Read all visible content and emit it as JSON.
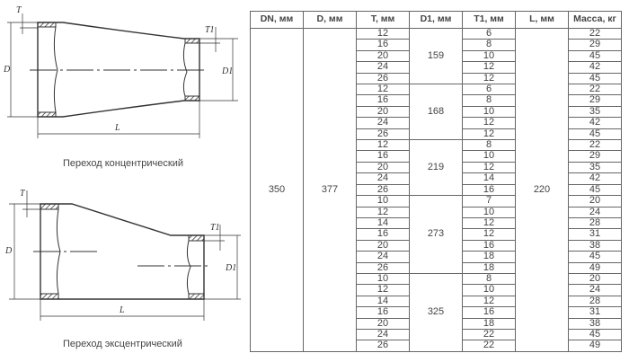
{
  "drawings": {
    "concentric_caption": "Переход концентрический",
    "eccentric_caption": "Переход эксцентрический",
    "labels": {
      "T": "T",
      "T1": "T1",
      "D": "D",
      "D1": "D1",
      "L": "L"
    }
  },
  "table": {
    "headers": [
      "DN, мм",
      "D, мм",
      "T, мм",
      "D1, мм",
      "T1, мм",
      "L, мм",
      "Масса, кг"
    ],
    "DN": "350",
    "D": "377",
    "L": "220",
    "groups": [
      {
        "D1": "159",
        "rows": [
          [
            "12",
            "6",
            "22"
          ],
          [
            "16",
            "8",
            "29"
          ],
          [
            "20",
            "10",
            "45"
          ],
          [
            "24",
            "12",
            "42"
          ],
          [
            "26",
            "12",
            "45"
          ]
        ]
      },
      {
        "D1": "168",
        "rows": [
          [
            "12",
            "6",
            "22"
          ],
          [
            "16",
            "8",
            "29"
          ],
          [
            "20",
            "10",
            "35"
          ],
          [
            "24",
            "12",
            "42"
          ],
          [
            "26",
            "12",
            "45"
          ]
        ]
      },
      {
        "D1": "219",
        "rows": [
          [
            "12",
            "8",
            "22"
          ],
          [
            "16",
            "10",
            "29"
          ],
          [
            "20",
            "12",
            "35"
          ],
          [
            "24",
            "14",
            "42"
          ],
          [
            "26",
            "16",
            "45"
          ]
        ]
      },
      {
        "D1": "273",
        "rows": [
          [
            "10",
            "7",
            "20"
          ],
          [
            "12",
            "10",
            "24"
          ],
          [
            "14",
            "12",
            "28"
          ],
          [
            "16",
            "12",
            "31"
          ],
          [
            "20",
            "16",
            "38"
          ],
          [
            "24",
            "18",
            "45"
          ],
          [
            "26",
            "18",
            "49"
          ]
        ]
      },
      {
        "D1": "325",
        "rows": [
          [
            "10",
            "8",
            "20"
          ],
          [
            "12",
            "10",
            "24"
          ],
          [
            "14",
            "12",
            "28"
          ],
          [
            "16",
            "16",
            "31"
          ],
          [
            "20",
            "18",
            "38"
          ],
          [
            "24",
            "22",
            "45"
          ],
          [
            "26",
            "22",
            "49"
          ]
        ]
      }
    ]
  }
}
